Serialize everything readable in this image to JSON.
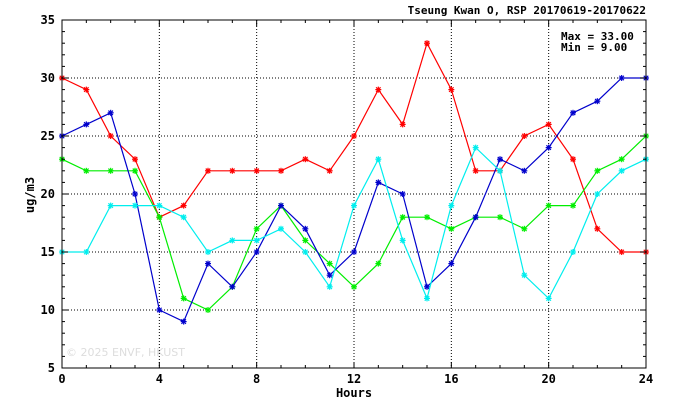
{
  "chart_data": {
    "type": "line",
    "title": "Tseung Kwan O, RSP 20170619-20170622",
    "xlabel": "Hours",
    "ylabel": "ug/m3",
    "xlim": [
      0,
      24
    ],
    "ylim": [
      5,
      35
    ],
    "xticks": [
      0,
      4,
      8,
      12,
      16,
      20,
      24
    ],
    "yticks": [
      5,
      10,
      15,
      20,
      25,
      30,
      35
    ],
    "grid": true,
    "stats": {
      "max_label": "Max = 33.00",
      "min_label": "Min =  9.00"
    },
    "watermark": "© 2025  ENVF, HKUST",
    "x": [
      0,
      1,
      2,
      3,
      4,
      5,
      6,
      7,
      8,
      9,
      10,
      11,
      12,
      13,
      14,
      15,
      16,
      17,
      18,
      19,
      20,
      21,
      22,
      23,
      24
    ],
    "series": [
      {
        "color": "#ff0000",
        "values": [
          30,
          29,
          25,
          23,
          18,
          19,
          22,
          22,
          22,
          22,
          23,
          22,
          25,
          29,
          26,
          33,
          29,
          22,
          22,
          25,
          26,
          23,
          17,
          15,
          15
        ]
      },
      {
        "color": "#00ee00",
        "values": [
          23,
          22,
          22,
          22,
          18,
          11,
          10,
          12,
          17,
          19,
          16,
          14,
          12,
          14,
          18,
          18,
          17,
          18,
          18,
          17,
          19,
          19,
          22,
          23,
          25
        ]
      },
      {
        "color": "#0000cc",
        "values": [
          25,
          26,
          27,
          20,
          10,
          9,
          14,
          12,
          15,
          19,
          17,
          13,
          15,
          21,
          20,
          12,
          14,
          18,
          23,
          22,
          24,
          27,
          28,
          30,
          30
        ]
      },
      {
        "color": "#00eeee",
        "values": [
          15,
          15,
          19,
          19,
          19,
          18,
          15,
          16,
          16,
          17,
          15,
          12,
          19,
          23,
          16,
          11,
          19,
          24,
          22,
          13,
          11,
          15,
          20,
          22,
          23
        ]
      }
    ]
  }
}
